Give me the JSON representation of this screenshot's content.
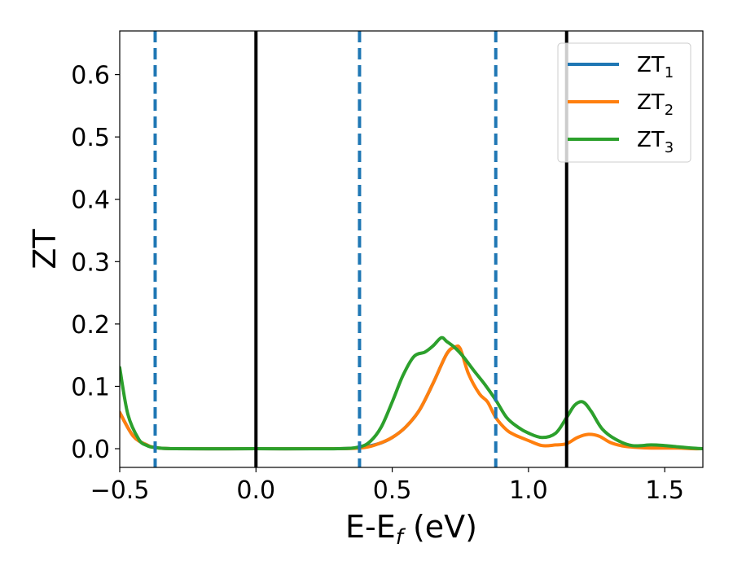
{
  "chart_data": {
    "type": "line",
    "xlabel_main": "E-E",
    "xlabel_sub": "f",
    "xlabel_unit": " (eV)",
    "ylabel": "ZT",
    "xlim": [
      -0.5,
      1.64
    ],
    "ylim": [
      -0.03,
      0.67
    ],
    "x_ticks": [
      -0.5,
      0.0,
      0.5,
      1.0,
      1.5
    ],
    "x_tick_labels": [
      "−0.5",
      "0.0",
      "0.5",
      "1.0",
      "1.5"
    ],
    "y_ticks": [
      0.0,
      0.1,
      0.2,
      0.3,
      0.4,
      0.5,
      0.6
    ],
    "y_tick_labels": [
      "0.0",
      "0.1",
      "0.2",
      "0.3",
      "0.4",
      "0.5",
      "0.6"
    ],
    "grid": false,
    "legend_placement": "top-right",
    "vlines_solid": [
      0.0,
      1.14
    ],
    "vlines_dashed": [
      -0.37,
      0.38,
      0.88
    ],
    "vline_solid_color": "#000000",
    "vline_dashed_color": "#1f77b4",
    "series": [
      {
        "name": "ZT",
        "subscript": "1",
        "color": "#1f77b4",
        "x": [
          -0.5,
          -0.45,
          -0.4,
          -0.37,
          -0.3,
          0.0,
          0.3,
          0.38,
          0.45,
          0.5,
          0.55,
          0.6,
          0.65,
          0.7,
          0.73,
          0.75
        ],
        "y": [
          0.058,
          0.02,
          0.006,
          0.002,
          0.0,
          0.0,
          0.0,
          0.002,
          0.008,
          0.018,
          0.035,
          0.062,
          0.105,
          0.152,
          0.163,
          0.16
        ]
      },
      {
        "name": "ZT",
        "subscript": "2",
        "color": "#ff7f0e",
        "x": [
          -0.5,
          -0.45,
          -0.4,
          -0.37,
          -0.3,
          0.0,
          0.3,
          0.4,
          0.45,
          0.5,
          0.55,
          0.6,
          0.65,
          0.7,
          0.73,
          0.75,
          0.78,
          0.82,
          0.85,
          0.88,
          0.92,
          0.95,
          1.0,
          1.05,
          1.1,
          1.14,
          1.18,
          1.22,
          1.26,
          1.3,
          1.35,
          1.4,
          1.45,
          1.5,
          1.55,
          1.6,
          1.64
        ],
        "y": [
          0.058,
          0.02,
          0.006,
          0.002,
          0.0,
          0.0,
          0.0,
          0.002,
          0.008,
          0.018,
          0.035,
          0.062,
          0.105,
          0.152,
          0.163,
          0.16,
          0.12,
          0.088,
          0.075,
          0.05,
          0.03,
          0.022,
          0.013,
          0.005,
          0.006,
          0.008,
          0.018,
          0.023,
          0.02,
          0.01,
          0.004,
          0.002,
          0.001,
          0.001,
          0.001,
          0.0,
          0.0
        ]
      },
      {
        "name": "ZT",
        "subscript": "3",
        "color": "#2ca02c",
        "x": [
          -0.5,
          -0.47,
          -0.43,
          -0.4,
          -0.37,
          -0.3,
          0.0,
          0.3,
          0.38,
          0.42,
          0.46,
          0.5,
          0.54,
          0.58,
          0.62,
          0.65,
          0.68,
          0.7,
          0.73,
          0.76,
          0.8,
          0.84,
          0.88,
          0.92,
          0.96,
          1.0,
          1.05,
          1.1,
          1.14,
          1.17,
          1.2,
          1.23,
          1.27,
          1.32,
          1.38,
          1.45,
          1.5,
          1.55,
          1.6,
          1.64
        ],
        "y": [
          0.13,
          0.055,
          0.015,
          0.005,
          0.002,
          0.0,
          0.0,
          0.0,
          0.003,
          0.012,
          0.035,
          0.075,
          0.118,
          0.148,
          0.155,
          0.165,
          0.178,
          0.172,
          0.162,
          0.148,
          0.125,
          0.103,
          0.078,
          0.05,
          0.035,
          0.025,
          0.018,
          0.025,
          0.05,
          0.07,
          0.075,
          0.06,
          0.032,
          0.015,
          0.005,
          0.006,
          0.005,
          0.003,
          0.001,
          0.0
        ]
      }
    ]
  }
}
